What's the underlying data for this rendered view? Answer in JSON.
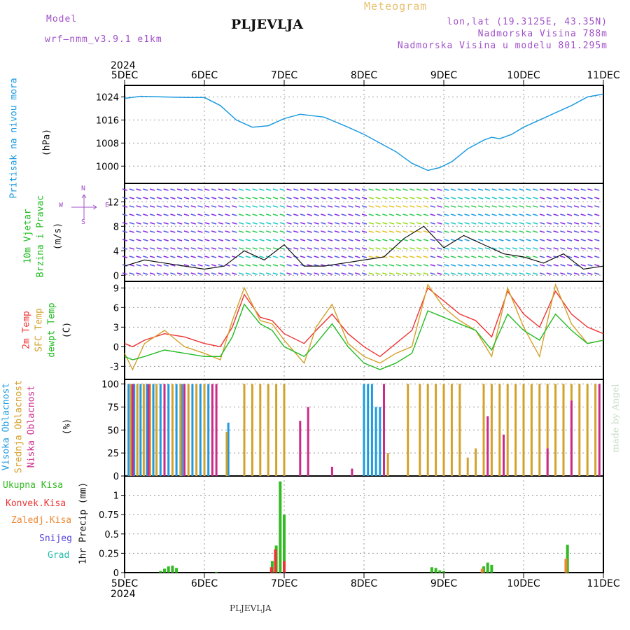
{
  "header": {
    "model_label": "Model",
    "model_name": "wrf—nmm_v3.9.1  e1km",
    "station": "PLJEVLJA",
    "product": "Meteogram",
    "coords": "lon,lat (19.3125E, 43.35N)",
    "elevation": "Nadmorska Visina 788m",
    "model_elevation": "Nadmorska Visina u modelu 801.295m"
  },
  "footer": {
    "station": "PLJEVLJA"
  },
  "watermark": "made by Angel",
  "colors": {
    "pressure": "#1e9be0",
    "temp2m": "#ee3333",
    "sfc_temp": "#d4a12a",
    "dewpoint": "#22bb22",
    "cloud_high": "#1e9be0",
    "cloud_mid": "#d4a12a",
    "cloud_low": "#cc2a8a",
    "precip_total": "#33bb22",
    "precip_conv": "#ee3333",
    "precip_frozen": "#ee8833",
    "precip_snow": "#5544dd",
    "precip_hail": "#22bbaa"
  },
  "chart_data": [
    {
      "id": "pressure",
      "type": "line",
      "ylabel": [
        "Pritisak na nivou mora",
        "(hPa)"
      ],
      "ylim": [
        994,
        1028
      ],
      "yticks": [
        1000,
        1008,
        1016,
        1024
      ],
      "x": [
        0,
        0.2,
        0.5,
        0.8,
        1.0,
        1.2,
        1.4,
        1.6,
        1.8,
        2.0,
        2.2,
        2.5,
        2.8,
        3.0,
        3.2,
        3.4,
        3.6,
        3.8,
        3.95,
        4.1,
        4.3,
        4.5,
        4.6,
        4.7,
        4.85,
        5.0,
        5.2,
        5.4,
        5.6,
        5.8,
        6.0
      ],
      "series": [
        {
          "values": [
            1023.5,
            1024.2,
            1024.0,
            1023.8,
            1023.8,
            1021,
            1016,
            1013.5,
            1014,
            1016.5,
            1018,
            1017,
            1013.5,
            1011,
            1008,
            1005,
            1001,
            998.5,
            999.5,
            1001.5,
            1006,
            1009,
            1010,
            1009.5,
            1011,
            1013.5,
            1016,
            1018.5,
            1021,
            1024,
            1025
          ]
        }
      ]
    },
    {
      "id": "wind",
      "type": "line",
      "ylabel": [
        "10m Vjetar",
        "Brzina i Pravac",
        "(m/s)"
      ],
      "compass": [
        "N",
        "E",
        "S",
        "W"
      ],
      "ylim": [
        -1,
        15
      ],
      "yticks": [
        0,
        4,
        8,
        12
      ],
      "x": [
        0,
        0.25,
        0.5,
        0.75,
        1.0,
        1.25,
        1.5,
        1.75,
        2.0,
        2.25,
        2.5,
        2.75,
        3.0,
        3.25,
        3.5,
        3.75,
        4.0,
        4.25,
        4.5,
        4.75,
        5.0,
        5.25,
        5.5,
        5.75,
        6.0
      ],
      "series": [
        {
          "name": "speed",
          "values": [
            1.5,
            2.5,
            2.0,
            1.5,
            1.0,
            1.5,
            4.0,
            2.5,
            5.0,
            1.5,
            1.5,
            2.0,
            2.5,
            3.0,
            6.0,
            8.0,
            4.5,
            6.5,
            5.0,
            3.5,
            3.0,
            2.0,
            3.5,
            1.0,
            1.5
          ]
        }
      ]
    },
    {
      "id": "temperature",
      "type": "line",
      "ylabel": [
        "2m Temp",
        "SFC Temp",
        "dewpt Temp",
        "(C)"
      ],
      "ylim": [
        -5,
        10
      ],
      "yticks": [
        -3,
        0,
        3,
        6,
        9
      ],
      "x": [
        0,
        0.1,
        0.25,
        0.5,
        0.75,
        1.0,
        1.2,
        1.35,
        1.5,
        1.7,
        1.85,
        2.0,
        2.25,
        2.4,
        2.6,
        2.8,
        3.0,
        3.2,
        3.4,
        3.6,
        3.8,
        4.0,
        4.2,
        4.4,
        4.6,
        4.8,
        5.0,
        5.2,
        5.4,
        5.6,
        5.8,
        6.0
      ],
      "series": [
        {
          "name": "2m Temp",
          "values": [
            0.5,
            0.0,
            1.0,
            2.0,
            1.5,
            0.5,
            0.0,
            3.0,
            8.0,
            4.5,
            4.0,
            2.0,
            0.5,
            2.5,
            5.0,
            2.0,
            0.0,
            -1.5,
            0.5,
            2.5,
            9.0,
            7.0,
            5.0,
            4.0,
            1.5,
            8.5,
            5.0,
            3.0,
            8.5,
            5.0,
            3.0,
            2.0
          ]
        },
        {
          "name": "SFC Temp",
          "values": [
            -1.0,
            -3.5,
            0.5,
            2.5,
            0.0,
            -1.0,
            -2.0,
            4.0,
            9.0,
            4.0,
            3.5,
            1.0,
            -2.5,
            3.0,
            6.5,
            0.5,
            -1.5,
            -2.5,
            -1.0,
            0.0,
            9.5,
            6.0,
            4.0,
            2.5,
            -1.5,
            9.0,
            3.0,
            -1.5,
            9.5,
            3.5,
            0.5,
            1.0
          ]
        },
        {
          "name": "dewpt Temp",
          "values": [
            -1.5,
            -2.0,
            -1.5,
            -0.5,
            -1.0,
            -1.5,
            -1.5,
            1.5,
            6.5,
            3.5,
            2.5,
            0.0,
            -1.5,
            0.5,
            3.5,
            0.0,
            -2.5,
            -3.5,
            -2.5,
            -1.0,
            5.5,
            4.5,
            3.5,
            2.5,
            -0.5,
            5.0,
            2.5,
            1.0,
            5.0,
            2.5,
            0.5,
            1.0
          ]
        }
      ]
    },
    {
      "id": "clouds",
      "type": "bar",
      "ylabel": [
        "Visoka Oblacnost",
        "Srednja Oblacnost",
        "Niska Oblacnost",
        "(%)"
      ],
      "ylim": [
        0,
        105
      ],
      "yticks": [
        0,
        25,
        50,
        75,
        100
      ],
      "series": [
        {
          "name": "Visoka Oblacnost",
          "x": [
            0.05,
            0.12,
            0.2,
            0.28,
            0.36,
            0.45,
            0.55,
            0.65,
            0.72,
            0.85,
            0.95,
            1.05,
            1.3,
            3.0,
            3.05,
            3.1,
            3.15,
            3.2
          ],
          "values": [
            100,
            100,
            100,
            100,
            100,
            100,
            100,
            100,
            100,
            100,
            100,
            100,
            58,
            100,
            100,
            100,
            75,
            75
          ]
        },
        {
          "name": "Srednja Oblacnost",
          "x": [
            0.08,
            0.16,
            0.24,
            0.32,
            0.4,
            0.5,
            0.6,
            0.7,
            0.8,
            0.9,
            1.0,
            1.1,
            1.28,
            1.5,
            1.6,
            1.7,
            1.8,
            1.9,
            2.0,
            3.3,
            3.55,
            3.7,
            3.8,
            3.9,
            4.0,
            4.1,
            4.2,
            4.3,
            4.4,
            4.5,
            4.6,
            4.7,
            4.8,
            4.9,
            5.0,
            5.1,
            5.2,
            5.3,
            5.4,
            5.5,
            5.6,
            5.7,
            5.8,
            5.9
          ],
          "values": [
            100,
            100,
            100,
            100,
            100,
            100,
            100,
            100,
            100,
            100,
            100,
            100,
            48,
            100,
            100,
            100,
            100,
            100,
            100,
            25,
            100,
            100,
            100,
            100,
            100,
            100,
            100,
            20,
            30,
            100,
            100,
            100,
            100,
            100,
            100,
            100,
            100,
            100,
            100,
            100,
            100,
            100,
            100,
            100
          ]
        },
        {
          "name": "Niska Oblacnost",
          "x": [
            0.1,
            0.3,
            0.5,
            0.75,
            1.1,
            1.15,
            2.2,
            2.3,
            2.6,
            2.85,
            3.25,
            4.55,
            4.75,
            5.3,
            5.6,
            5.95
          ],
          "values": [
            100,
            100,
            100,
            100,
            100,
            100,
            60,
            75,
            10,
            8,
            100,
            65,
            45,
            30,
            82,
            100
          ]
        }
      ]
    },
    {
      "id": "precip",
      "type": "bar",
      "ylabel": [
        "1hr Precip (mm)"
      ],
      "ylim": [
        0,
        1.25
      ],
      "yticks": [
        0,
        0.25,
        0.5,
        0.75,
        1
      ],
      "categories": [
        "5DEC",
        "6DEC",
        "7DEC",
        "8DEC",
        "9DEC",
        "10DEC",
        "11DEC"
      ],
      "top_labels": [
        "2024",
        "5DEC",
        "6DEC",
        "7DEC",
        "8DEC",
        "9DEC",
        "10DEC",
        "11DEC"
      ],
      "bottom_year": "2024",
      "legend": [
        "Ukupna Kisa",
        "Konvek.Kisa",
        "Zaledj.Kisa",
        "Snijeg",
        "Grad"
      ],
      "series": [
        {
          "name": "Ukupna Kisa",
          "x": [
            0.45,
            0.5,
            0.55,
            0.6,
            0.65,
            1.15,
            1.85,
            1.9,
            1.95,
            2.0,
            3.85,
            3.9,
            3.95,
            4.0,
            4.5,
            4.55,
            4.6,
            5.55
          ],
          "values": [
            0.02,
            0.05,
            0.08,
            0.09,
            0.06,
            0.01,
            0.15,
            0.35,
            1.18,
            0.75,
            0.07,
            0.06,
            0.03,
            0.02,
            0.08,
            0.13,
            0.1,
            0.36
          ]
        },
        {
          "name": "Konvek.Kisa",
          "x": [
            1.84,
            1.89,
            2.0
          ],
          "values": [
            0.07,
            0.3,
            0.15
          ]
        },
        {
          "name": "Zaledj.Kisa",
          "x": [
            4.48,
            5.53
          ],
          "values": [
            0.05,
            0.18
          ]
        }
      ]
    }
  ]
}
